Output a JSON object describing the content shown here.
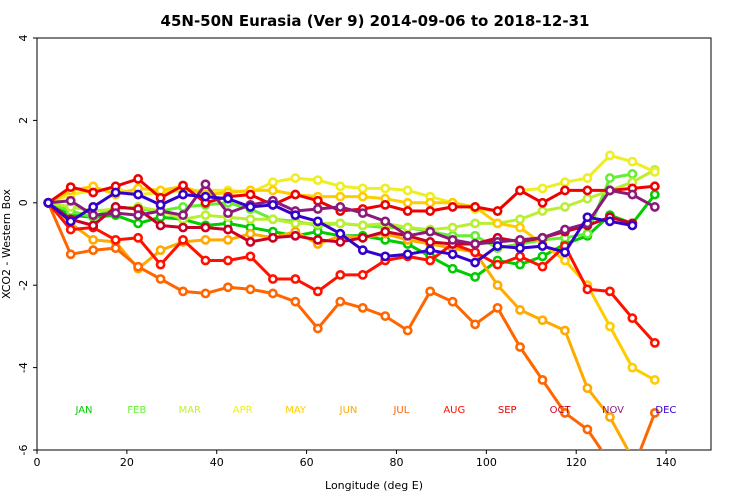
{
  "chart_data": {
    "type": "line",
    "title": "45N-50N Eurasia (Ver 9)   2014-09-06 to 2018-12-31",
    "xlabel": "Longitude (deg E)",
    "ylabel": "XCO2 - Western Box",
    "xlim": [
      0,
      150
    ],
    "ylim": [
      -6,
      4
    ],
    "xticks": [
      0,
      20,
      40,
      60,
      80,
      100,
      120,
      140
    ],
    "yticks": [
      -6,
      -4,
      -2,
      0,
      2,
      4
    ],
    "xtick_labels": [
      "0",
      "20",
      "40",
      "60",
      "80",
      "100",
      "120",
      "140"
    ],
    "ytick_labels": [
      "-6",
      "-4",
      "-2",
      "0",
      "2",
      "4"
    ],
    "grid": false,
    "legend_position": "bottom, inline month labels at y = -5",
    "x": [
      2.5,
      7.5,
      12.5,
      17.5,
      22.5,
      27.5,
      32.5,
      37.5,
      42.5,
      47.5,
      52.5,
      57.5,
      62.5,
      67.5,
      72.5,
      77.5,
      82.5,
      87.5,
      92.5,
      97.5,
      102.5,
      107.5,
      112.5,
      117.5,
      122.5,
      127.5,
      132.5,
      137.5
    ],
    "series": [
      {
        "name": "JAN",
        "color": "#00cc00",
        "values": [
          0,
          -0.3,
          -0.35,
          -0.3,
          -0.5,
          -0.35,
          -0.4,
          -0.55,
          -0.5,
          -0.6,
          -0.7,
          -0.8,
          -0.7,
          -0.8,
          -0.8,
          -0.9,
          -1.0,
          -1.3,
          -1.6,
          -1.8,
          -1.4,
          -1.5,
          -1.3,
          -1.0,
          -0.8,
          -0.3,
          -0.5,
          0.2
        ]
      },
      {
        "name": "FEB",
        "color": "#66ee33",
        "values": [
          0,
          -0.2,
          -0.35,
          -0.1,
          -0.15,
          -0.2,
          -0.1,
          -0.05,
          0.0,
          -0.15,
          -0.4,
          -0.45,
          -0.55,
          -0.5,
          -0.55,
          -0.6,
          -0.6,
          -0.7,
          -0.8,
          -0.8,
          -1.1,
          -1.0,
          -0.9,
          -0.85,
          -0.75,
          0.6,
          0.7,
          null
        ]
      },
      {
        "name": "MAR",
        "color": "#bbee33",
        "values": [
          0,
          -0.1,
          -0.2,
          -0.15,
          -0.1,
          -0.2,
          -0.4,
          -0.3,
          -0.35,
          -0.4,
          -0.4,
          -0.5,
          -0.5,
          -0.5,
          -0.55,
          -0.5,
          -0.6,
          -0.65,
          -0.6,
          -0.5,
          -0.5,
          -0.4,
          -0.2,
          -0.1,
          0.1,
          0.3,
          0.5,
          0.8
        ]
      },
      {
        "name": "APR",
        "color": "#eeee22",
        "values": [
          0,
          0.2,
          0.3,
          0.35,
          0.2,
          0.25,
          0.3,
          0.3,
          0.3,
          0.25,
          0.5,
          0.6,
          0.55,
          0.4,
          0.35,
          0.35,
          0.3,
          0.15,
          0.0,
          -0.15,
          -0.2,
          0.3,
          0.35,
          0.5,
          0.6,
          1.15,
          1.0,
          0.75
        ]
      },
      {
        "name": "MAY",
        "color": "#ffcc00",
        "values": [
          0,
          0.3,
          0.4,
          0.2,
          0.35,
          0.3,
          0.4,
          0.2,
          0.25,
          0.3,
          0.3,
          0.2,
          0.15,
          0.15,
          0.15,
          0.1,
          0.0,
          0.0,
          0.0,
          -0.1,
          -0.5,
          -0.6,
          -1.0,
          -1.4,
          -2.0,
          -3.0,
          -4.0,
          -4.3
        ]
      },
      {
        "name": "JUN",
        "color": "#ffaa00",
        "values": [
          0,
          -0.5,
          -0.9,
          -0.95,
          -1.6,
          -1.15,
          -0.95,
          -0.9,
          -0.9,
          -0.75,
          -0.85,
          -0.7,
          -1.0,
          -0.8,
          -0.85,
          -0.75,
          -0.9,
          -1.0,
          -1.1,
          -1.2,
          -2.0,
          -2.6,
          -2.85,
          -3.1,
          -4.5,
          -5.2,
          -6.2,
          null
        ]
      },
      {
        "name": "JUL",
        "color": "#ff6600",
        "values": [
          0,
          -1.25,
          -1.15,
          -1.1,
          -1.55,
          -1.85,
          -2.15,
          -2.2,
          -2.05,
          -2.1,
          -2.2,
          -2.4,
          -3.05,
          -2.4,
          -2.55,
          -2.75,
          -3.1,
          -2.15,
          -2.4,
          -2.95,
          -2.55,
          -3.5,
          -4.3,
          -5.1,
          -5.5,
          -6.3,
          -6.5,
          -5.1
        ]
      },
      {
        "name": "AUG",
        "color": "#ff1100",
        "values": [
          0,
          -0.65,
          -0.6,
          -0.9,
          -0.85,
          -1.5,
          -0.9,
          -1.4,
          -1.4,
          -1.3,
          -1.85,
          -1.85,
          -2.15,
          -1.75,
          -1.75,
          -1.4,
          -1.3,
          -1.4,
          -1.0,
          -1.2,
          -1.5,
          -1.3,
          -1.55,
          -1.05,
          -2.1,
          -2.15,
          -2.8,
          -3.4
        ]
      },
      {
        "name": "SEP",
        "color": "#ee0000",
        "values": [
          0,
          0.38,
          0.25,
          0.4,
          0.58,
          0.12,
          0.42,
          0.0,
          0.15,
          0.2,
          -0.05,
          0.2,
          0.05,
          -0.2,
          -0.15,
          -0.05,
          -0.2,
          -0.2,
          -0.1,
          -0.1,
          -0.2,
          0.3,
          0.0,
          0.3,
          0.3,
          0.3,
          0.35,
          0.4
        ]
      },
      {
        "name": "OCT",
        "color": "#cc0022",
        "values": [
          0,
          -0.4,
          -0.55,
          -0.1,
          -0.15,
          -0.55,
          -0.6,
          -0.6,
          -0.65,
          -0.95,
          -0.85,
          -0.8,
          -0.9,
          -0.95,
          -0.85,
          -0.7,
          -0.8,
          -0.95,
          -1.0,
          -1.0,
          -0.85,
          -0.95,
          -0.85,
          -0.7,
          -0.55,
          -0.35,
          -0.5,
          null
        ]
      },
      {
        "name": "NOV",
        "color": "#8b1a7a",
        "values": [
          0,
          0.05,
          -0.3,
          -0.25,
          -0.3,
          -0.2,
          -0.3,
          0.45,
          -0.25,
          -0.05,
          0.05,
          -0.2,
          -0.15,
          -0.1,
          -0.25,
          -0.45,
          -0.8,
          -0.7,
          -0.9,
          -1.0,
          -0.95,
          -0.9,
          -0.85,
          -0.65,
          -0.5,
          0.3,
          0.2,
          -0.1
        ]
      },
      {
        "name": "DEC",
        "color": "#3300cc",
        "values": [
          0,
          -0.45,
          -0.1,
          0.25,
          0.2,
          -0.05,
          0.2,
          0.15,
          0.1,
          -0.1,
          -0.05,
          -0.3,
          -0.45,
          -0.75,
          -1.15,
          -1.3,
          -1.25,
          -1.15,
          -1.25,
          -1.45,
          -1.05,
          -1.1,
          -1.05,
          -1.2,
          -0.35,
          -0.45,
          -0.55,
          null
        ]
      }
    ]
  }
}
